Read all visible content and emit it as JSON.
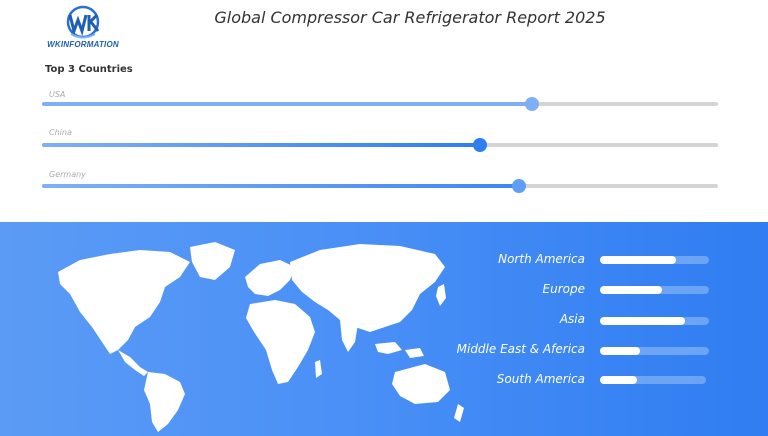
{
  "header": {
    "logo_text": "WKINFORMATION",
    "title": "Global Compressor Car Refrigerator Report 2025"
  },
  "countries": {
    "section_title": "Top 3 Countries",
    "items": [
      {
        "name": "USA",
        "value": 0.725,
        "fill_color": "#7fb0f7",
        "knob_color": "#7fb0f7"
      },
      {
        "name": "China",
        "value": 0.648,
        "fill_color": "#2f7df2",
        "knob_color": "#2f7df2"
      },
      {
        "name": "Germany",
        "value": 0.705,
        "fill_color": "#3f86f3",
        "knob_color": "#5e9ef6"
      }
    ]
  },
  "regions": {
    "items": [
      {
        "name": "North America",
        "value": 0.7
      },
      {
        "name": "Europe",
        "value": 0.57
      },
      {
        "name": "Asia",
        "value": 0.78
      },
      {
        "name": "Middle East & Aferica",
        "value": 0.37
      },
      {
        "name": "South America",
        "value": 0.35
      }
    ]
  },
  "colors": {
    "accent": "#2f7df2",
    "panel_gradient_start": "#5b9bf5",
    "panel_gradient_end": "#2f7df2"
  }
}
